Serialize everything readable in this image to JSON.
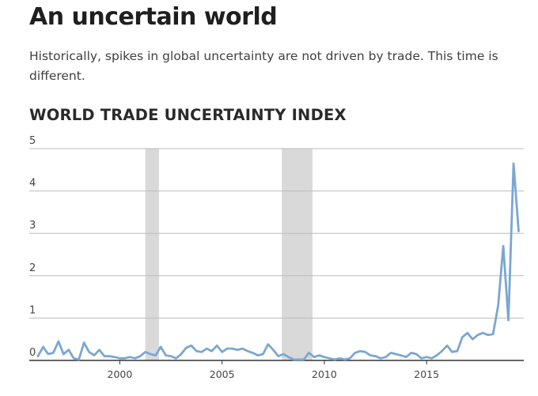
{
  "header": {
    "title": "An uncertain world",
    "subtitle": "Historically, spikes in global uncertainty are not driven by trade. This time is different."
  },
  "colors": {
    "line": "#7aa7d2",
    "recession_band": "#d9d9d9",
    "gridline": "#bbbbbb",
    "baseline": "#333333"
  },
  "chart_data": {
    "type": "line",
    "title": "WORLD TRADE UNCERTAINTY INDEX",
    "xlabel": "",
    "ylabel": "",
    "xlim": [
      1996.0,
      2019.75
    ],
    "ylim": [
      0,
      5
    ],
    "grid": true,
    "yticks": [
      0,
      1,
      2,
      3,
      4,
      5
    ],
    "xticks": [
      2000,
      2005,
      2010,
      2015
    ],
    "shaded_periods": [
      [
        2001.25,
        2001.92
      ],
      [
        2007.92,
        2009.42
      ]
    ],
    "series": [
      {
        "x": [
          1996.0,
          1996.25,
          1996.5,
          1996.75,
          1997.0,
          1997.25,
          1997.5,
          1997.75,
          1998.0,
          1998.25,
          1998.5,
          1998.75,
          1999.0,
          1999.25,
          1999.5,
          1999.75,
          2000.0,
          2000.25,
          2000.5,
          2000.75,
          2001.0,
          2001.25,
          2001.5,
          2001.75,
          2002.0,
          2002.25,
          2002.5,
          2002.75,
          2003.0,
          2003.25,
          2003.5,
          2003.75,
          2004.0,
          2004.25,
          2004.5,
          2004.75,
          2005.0,
          2005.25,
          2005.5,
          2005.75,
          2006.0,
          2006.25,
          2006.5,
          2006.75,
          2007.0,
          2007.25,
          2007.5,
          2007.75,
          2008.0,
          2008.25,
          2008.5,
          2008.75,
          2009.0,
          2009.25,
          2009.5,
          2009.75,
          2010.0,
          2010.25,
          2010.5,
          2010.75,
          2011.0,
          2011.25,
          2011.5,
          2011.75,
          2012.0,
          2012.25,
          2012.5,
          2012.75,
          2013.0,
          2013.25,
          2013.5,
          2013.75,
          2014.0,
          2014.25,
          2014.5,
          2014.75,
          2015.0,
          2015.25,
          2015.5,
          2015.75,
          2016.0,
          2016.25,
          2016.5,
          2016.75,
          2017.0,
          2017.25,
          2017.5,
          2017.75,
          2018.0,
          2018.25,
          2018.5,
          2018.75,
          2019.0,
          2019.25,
          2019.5
        ],
        "values": [
          0.1,
          0.32,
          0.15,
          0.18,
          0.45,
          0.15,
          0.25,
          0.05,
          0.02,
          0.42,
          0.2,
          0.12,
          0.25,
          0.1,
          0.1,
          0.08,
          0.05,
          0.05,
          0.08,
          0.05,
          0.1,
          0.2,
          0.15,
          0.12,
          0.32,
          0.12,
          0.1,
          0.05,
          0.15,
          0.3,
          0.35,
          0.22,
          0.2,
          0.28,
          0.22,
          0.35,
          0.2,
          0.28,
          0.28,
          0.25,
          0.28,
          0.22,
          0.18,
          0.12,
          0.15,
          0.38,
          0.25,
          0.1,
          0.15,
          0.08,
          0.02,
          0.02,
          0.02,
          0.18,
          0.08,
          0.12,
          0.08,
          0.05,
          0.02,
          0.05,
          0.02,
          0.05,
          0.18,
          0.22,
          0.2,
          0.12,
          0.1,
          0.05,
          0.08,
          0.18,
          0.15,
          0.12,
          0.08,
          0.18,
          0.15,
          0.05,
          0.08,
          0.05,
          0.12,
          0.22,
          0.35,
          0.2,
          0.22,
          0.55,
          0.65,
          0.5,
          0.6,
          0.65,
          0.6,
          0.62,
          1.3,
          2.7,
          0.95,
          4.65,
          3.05
        ]
      }
    ]
  }
}
